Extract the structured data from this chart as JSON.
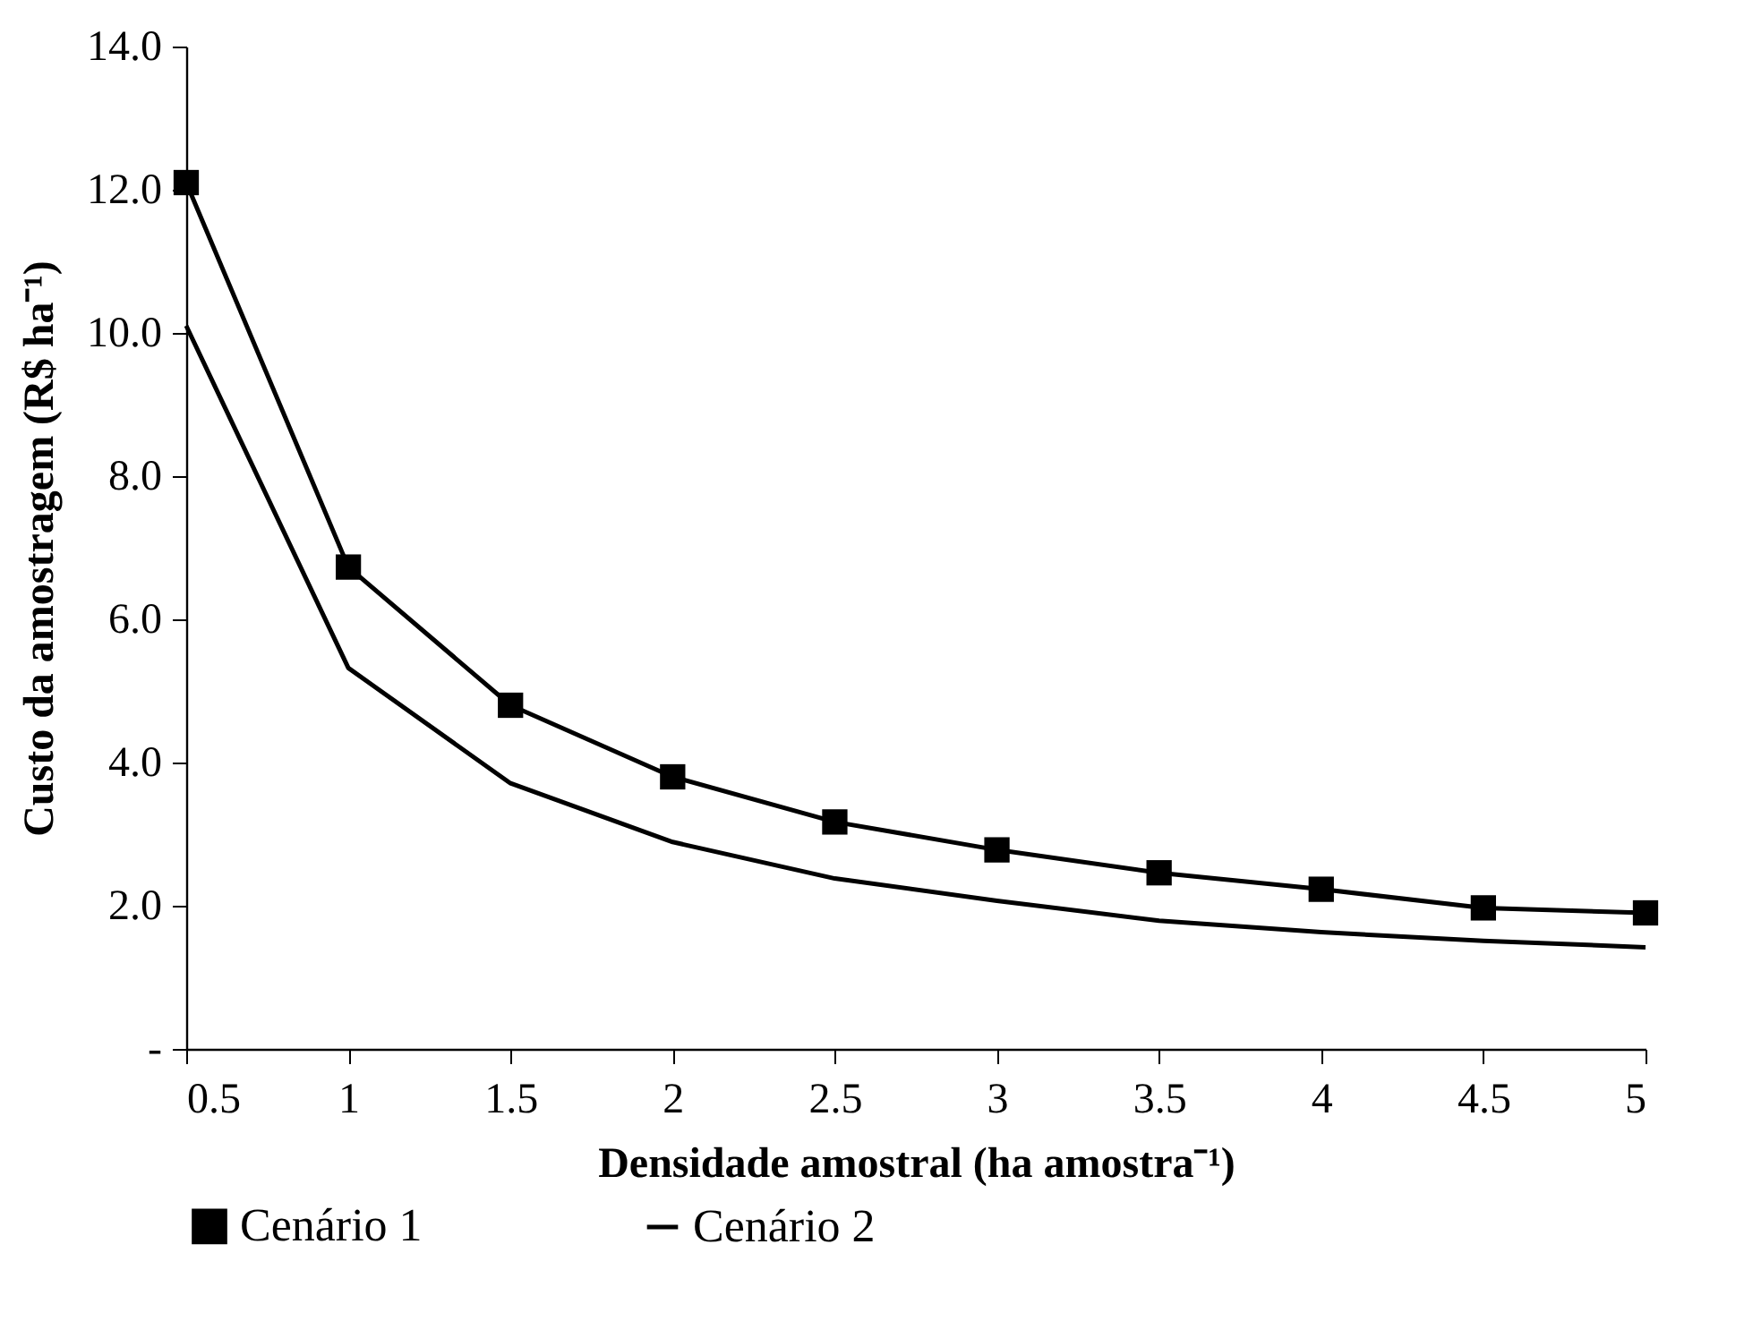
{
  "chart_data": {
    "type": "line",
    "xlabel": "Densidade amostral (ha amostra⁻¹)",
    "ylabel": "Custo da amostragem (R$ ha⁻¹)",
    "x": [
      0.5,
      1,
      1.5,
      2,
      2.5,
      3,
      3.5,
      4,
      4.5,
      5
    ],
    "series": [
      {
        "name": "Cenário 1",
        "color": "#000000",
        "marker": "square",
        "values": [
          12.1,
          6.73,
          4.8,
          3.8,
          3.17,
          2.78,
          2.46,
          2.23,
          1.97,
          1.9
        ]
      },
      {
        "name": "Cenário 2",
        "color": "#000000",
        "marker": "none",
        "values": [
          10.1,
          5.32,
          3.71,
          2.89,
          2.38,
          2.07,
          1.79,
          1.63,
          1.51,
          1.42
        ]
      }
    ],
    "xlim": [
      0.5,
      5
    ],
    "xticks": [
      0.5,
      1,
      1.5,
      2,
      2.5,
      3,
      3.5,
      4,
      4.5,
      5
    ],
    "ylim": [
      0,
      14
    ],
    "yticks": [
      {
        "value": 0,
        "label": "-"
      },
      {
        "value": 2,
        "label": "2.0"
      },
      {
        "value": 4,
        "label": "4.0"
      },
      {
        "value": 6,
        "label": "6.0"
      },
      {
        "value": 8,
        "label": "8.0"
      },
      {
        "value": 10,
        "label": "10.0"
      },
      {
        "value": 12,
        "label": "12.0"
      },
      {
        "value": 14,
        "label": "14.0"
      }
    ],
    "grid": false,
    "legend": "bottom",
    "line_style": "solid"
  }
}
